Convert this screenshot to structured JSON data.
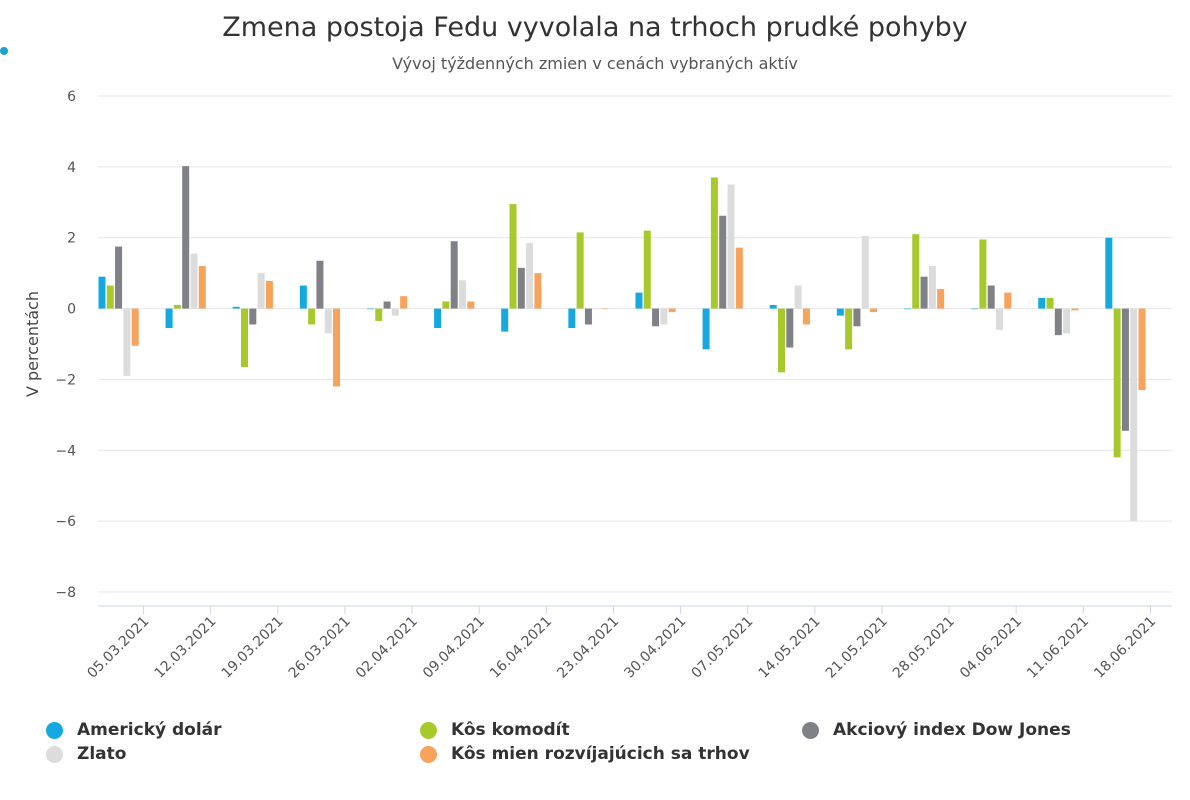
{
  "chart_data": {
    "type": "bar",
    "title": "Zmena postoja Fedu vyvolala na trhoch prudké pohyby",
    "subtitle": "Vývoj týždenných zmien v cenách vybraných aktív",
    "ylabel": "V percentách",
    "xlabel": "",
    "ylim": [
      -8,
      6
    ],
    "yticks": [
      6,
      4,
      2,
      0,
      -2,
      -4,
      -6,
      -8
    ],
    "ytick_labels": [
      "6",
      "4",
      "2",
      "0",
      "−2",
      "−4",
      "−6",
      "−8"
    ],
    "grid": true,
    "legend_position": "bottom",
    "categories": [
      "05.03.2021",
      "12.03.2021",
      "19.03.2021",
      "26.03.2021",
      "02.04.2021",
      "09.04.2021",
      "16.04.2021",
      "23.04.2021",
      "30.04.2021",
      "07.05.2021",
      "14.05.2021",
      "21.05.2021",
      "28.05.2021",
      "04.06.2021",
      "11.06.2021",
      "18.06.2021"
    ],
    "series": [
      {
        "name": "Americký dolár",
        "color": "#16a9e1",
        "values": [
          0.9,
          -0.55,
          0.05,
          0.65,
          0,
          -0.55,
          -0.65,
          -0.55,
          0.45,
          -1.15,
          0.1,
          -0.2,
          0,
          0,
          0.3,
          2.0
        ]
      },
      {
        "name": "Kôs komodít",
        "color": "#a8c92c",
        "values": [
          0.65,
          0.1,
          -1.65,
          -0.45,
          -0.35,
          0.2,
          2.95,
          2.15,
          2.2,
          3.7,
          -1.8,
          -1.15,
          2.1,
          1.95,
          0.3,
          -4.2
        ]
      },
      {
        "name": "Akciový index Dow Jones",
        "color": "#808186",
        "values": [
          1.75,
          4.02,
          -0.45,
          1.35,
          0.2,
          1.9,
          1.15,
          -0.45,
          -0.5,
          2.62,
          -1.1,
          -0.5,
          0.9,
          0.65,
          -0.75,
          -3.45
        ]
      },
      {
        "name": "Zlato",
        "color": "#dcdcdc",
        "values": [
          -1.9,
          1.55,
          1.0,
          -0.7,
          -0.2,
          0.8,
          1.85,
          0,
          -0.45,
          3.5,
          0.65,
          2.05,
          1.2,
          -0.6,
          -0.7,
          -6.0
        ]
      },
      {
        "name": "Kôs mien rozvíjajúcich sa trhov",
        "color": "#f7a35c",
        "values": [
          -1.05,
          1.2,
          0.78,
          -2.2,
          0.35,
          0.2,
          1.0,
          0,
          -0.1,
          1.72,
          -0.45,
          -0.1,
          0.55,
          0.45,
          -0.05,
          -2.3
        ]
      }
    ]
  }
}
